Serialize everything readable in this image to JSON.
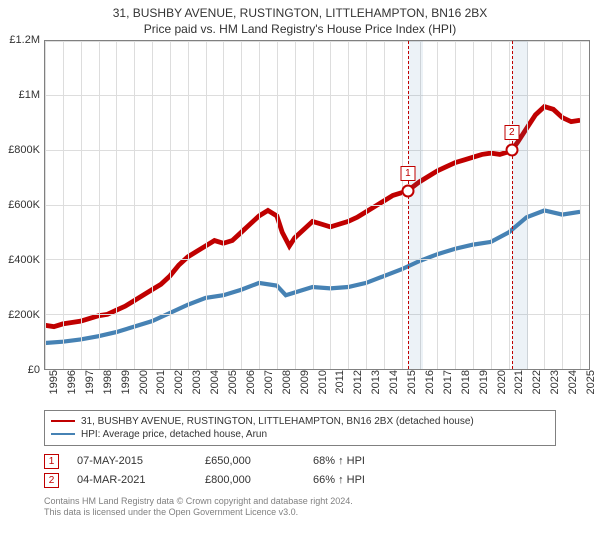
{
  "title_line1": "31, BUSHBY AVENUE, RUSTINGTON, LITTLEHAMPTON, BN16 2BX",
  "title_line2": "Price paid vs. HM Land Registry's House Price Index (HPI)",
  "chart": {
    "type": "line",
    "background_color": "#ffffff",
    "grid_color": "#dddddd",
    "axis_color": "#808080",
    "x_years": [
      1995,
      1996,
      1997,
      1998,
      1999,
      2000,
      2001,
      2002,
      2003,
      2004,
      2005,
      2006,
      2007,
      2008,
      2009,
      2010,
      2011,
      2012,
      2013,
      2014,
      2015,
      2016,
      2017,
      2018,
      2019,
      2020,
      2021,
      2022,
      2023,
      2024,
      2025
    ],
    "x_min": 1995,
    "x_max": 2025.5,
    "y_ticks": [
      {
        "v": 0,
        "label": "£0"
      },
      {
        "v": 200000,
        "label": "£200K"
      },
      {
        "v": 400000,
        "label": "£400K"
      },
      {
        "v": 600000,
        "label": "£600K"
      },
      {
        "v": 800000,
        "label": "£800K"
      },
      {
        "v": 1000000,
        "label": "£1M"
      },
      {
        "v": 1200000,
        "label": "£1.2M"
      }
    ],
    "y_min": 0,
    "y_max": 1200000,
    "shaded_ranges": [
      {
        "from": 2015.35,
        "to": 2016.2
      },
      {
        "from": 2021.17,
        "to": 2022.1
      }
    ],
    "series": [
      {
        "name": "property",
        "color": "#c00000",
        "width": 1.6,
        "points": [
          [
            1995,
            160000
          ],
          [
            1995.5,
            155000
          ],
          [
            1996,
            165000
          ],
          [
            1996.5,
            170000
          ],
          [
            1997,
            175000
          ],
          [
            1997.5,
            185000
          ],
          [
            1998,
            195000
          ],
          [
            1998.5,
            200000
          ],
          [
            1999,
            215000
          ],
          [
            1999.5,
            230000
          ],
          [
            2000,
            250000
          ],
          [
            2000.5,
            270000
          ],
          [
            2001,
            290000
          ],
          [
            2001.5,
            310000
          ],
          [
            2002,
            340000
          ],
          [
            2002.5,
            380000
          ],
          [
            2003,
            410000
          ],
          [
            2003.5,
            430000
          ],
          [
            2004,
            450000
          ],
          [
            2004.5,
            470000
          ],
          [
            2005,
            460000
          ],
          [
            2005.5,
            470000
          ],
          [
            2006,
            500000
          ],
          [
            2006.5,
            530000
          ],
          [
            2007,
            560000
          ],
          [
            2007.5,
            580000
          ],
          [
            2008,
            560000
          ],
          [
            2008.3,
            500000
          ],
          [
            2008.7,
            450000
          ],
          [
            2009,
            480000
          ],
          [
            2009.5,
            510000
          ],
          [
            2010,
            540000
          ],
          [
            2010.5,
            530000
          ],
          [
            2011,
            520000
          ],
          [
            2011.5,
            530000
          ],
          [
            2012,
            540000
          ],
          [
            2012.5,
            555000
          ],
          [
            2013,
            575000
          ],
          [
            2013.5,
            595000
          ],
          [
            2014,
            615000
          ],
          [
            2014.5,
            635000
          ],
          [
            2015,
            645000
          ],
          [
            2015.35,
            650000
          ],
          [
            2015.5,
            660000
          ],
          [
            2016,
            685000
          ],
          [
            2016.5,
            705000
          ],
          [
            2017,
            725000
          ],
          [
            2017.5,
            740000
          ],
          [
            2018,
            755000
          ],
          [
            2018.5,
            765000
          ],
          [
            2019,
            775000
          ],
          [
            2019.5,
            785000
          ],
          [
            2020,
            790000
          ],
          [
            2020.5,
            785000
          ],
          [
            2021,
            795000
          ],
          [
            2021.17,
            800000
          ],
          [
            2021.5,
            830000
          ],
          [
            2022,
            880000
          ],
          [
            2022.5,
            930000
          ],
          [
            2023,
            960000
          ],
          [
            2023.5,
            950000
          ],
          [
            2024,
            920000
          ],
          [
            2024.5,
            905000
          ],
          [
            2025,
            910000
          ]
        ]
      },
      {
        "name": "hpi",
        "color": "#4682b4",
        "width": 1.4,
        "points": [
          [
            1995,
            95000
          ],
          [
            1996,
            100000
          ],
          [
            1997,
            108000
          ],
          [
            1998,
            120000
          ],
          [
            1999,
            135000
          ],
          [
            2000,
            155000
          ],
          [
            2001,
            175000
          ],
          [
            2002,
            205000
          ],
          [
            2003,
            235000
          ],
          [
            2004,
            260000
          ],
          [
            2005,
            270000
          ],
          [
            2006,
            290000
          ],
          [
            2007,
            315000
          ],
          [
            2008,
            305000
          ],
          [
            2008.5,
            270000
          ],
          [
            2009,
            280000
          ],
          [
            2010,
            300000
          ],
          [
            2011,
            295000
          ],
          [
            2012,
            300000
          ],
          [
            2013,
            315000
          ],
          [
            2014,
            340000
          ],
          [
            2015,
            365000
          ],
          [
            2016,
            395000
          ],
          [
            2017,
            420000
          ],
          [
            2018,
            440000
          ],
          [
            2019,
            455000
          ],
          [
            2020,
            465000
          ],
          [
            2021,
            500000
          ],
          [
            2022,
            555000
          ],
          [
            2023,
            580000
          ],
          [
            2024,
            565000
          ],
          [
            2025,
            575000
          ]
        ]
      }
    ],
    "sale_markers": [
      {
        "n": "1",
        "x": 2015.35,
        "y": 650000,
        "label_y_offset_k": 90000
      },
      {
        "n": "2",
        "x": 2021.17,
        "y": 800000,
        "label_y_offset_k": 90000
      }
    ]
  },
  "legend": {
    "items": [
      {
        "color": "#c00000",
        "label": "31, BUSHBY AVENUE, RUSTINGTON, LITTLEHAMPTON, BN16 2BX (detached house)"
      },
      {
        "color": "#4682b4",
        "label": "HPI: Average price, detached house, Arun"
      }
    ]
  },
  "sales": [
    {
      "n": "1",
      "date": "07-MAY-2015",
      "price": "£650,000",
      "hpi": "68% ↑ HPI"
    },
    {
      "n": "2",
      "date": "04-MAR-2021",
      "price": "£800,000",
      "hpi": "66% ↑ HPI"
    }
  ],
  "footer_line1": "Contains HM Land Registry data © Crown copyright and database right 2024.",
  "footer_line2": "This data is licensed under the Open Government Licence v3.0."
}
